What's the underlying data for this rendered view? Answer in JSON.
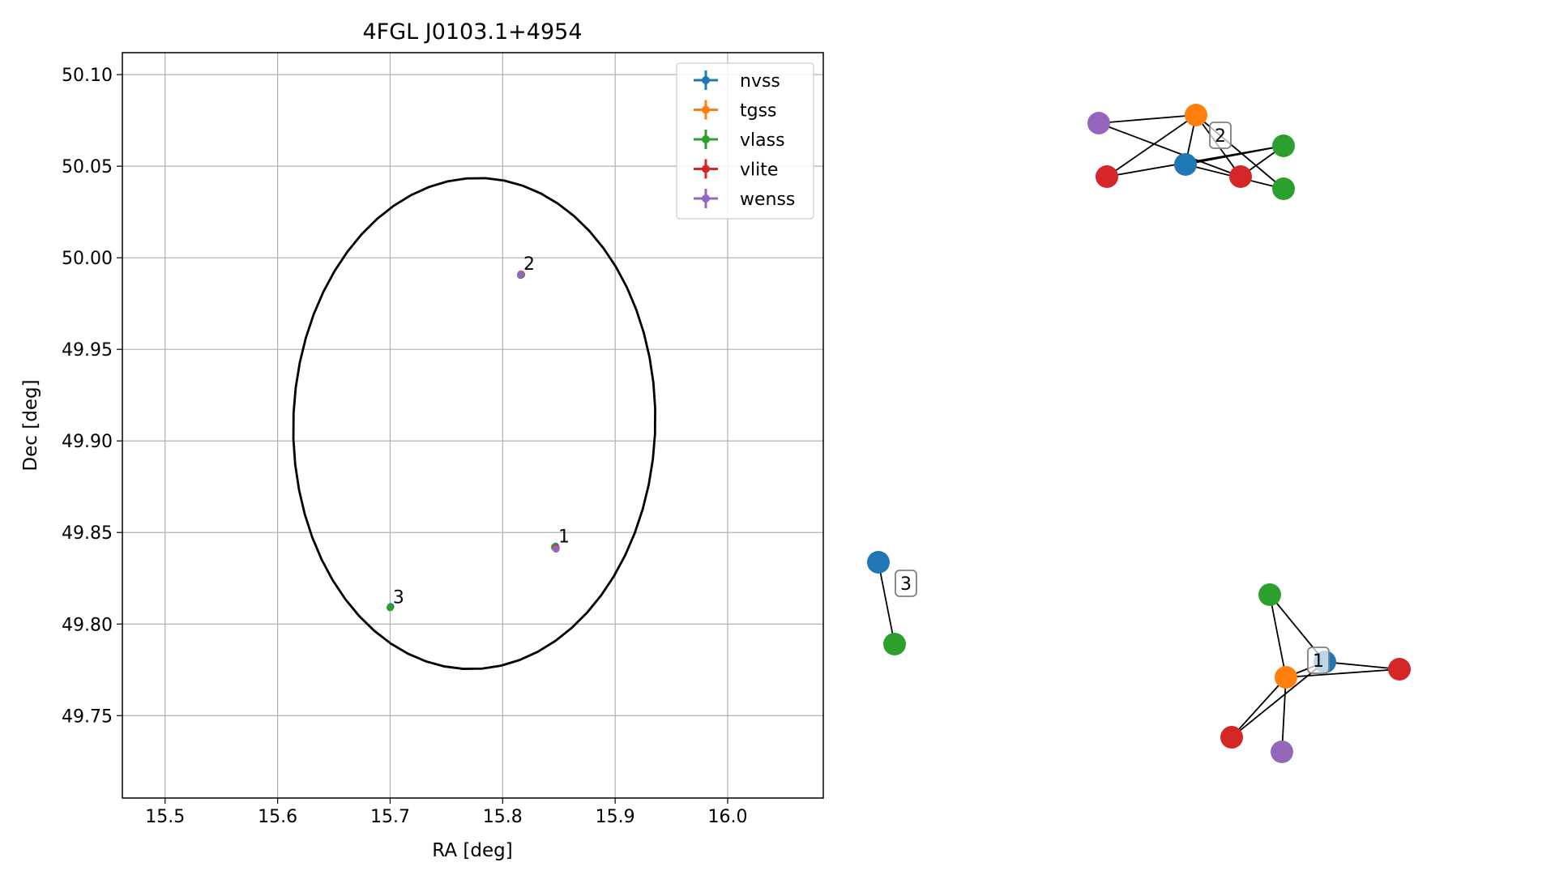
{
  "chart_data": [
    {
      "type": "scatter",
      "title": "4FGL J0103.1+4954",
      "xlabel": "RA [deg]",
      "ylabel": "Dec [deg]",
      "xlim": [
        15.462,
        16.085
      ],
      "ylim": [
        49.705,
        50.112
      ],
      "grid": true,
      "legend_position": "top-right",
      "xticks": [
        {
          "value": 15.5,
          "label": "15.5"
        },
        {
          "value": 15.6,
          "label": "15.6"
        },
        {
          "value": 15.7,
          "label": "15.7"
        },
        {
          "value": 15.8,
          "label": "15.8"
        },
        {
          "value": 15.9,
          "label": "15.9"
        },
        {
          "value": 16.0,
          "label": "16.0"
        }
      ],
      "yticks": [
        {
          "value": 49.75,
          "label": "49.75"
        },
        {
          "value": 49.8,
          "label": "49.80"
        },
        {
          "value": 49.85,
          "label": "49.85"
        },
        {
          "value": 49.9,
          "label": "49.90"
        },
        {
          "value": 49.95,
          "label": "49.95"
        },
        {
          "value": 50.0,
          "label": "50.00"
        },
        {
          "value": 50.05,
          "label": "50.05"
        },
        {
          "value": 50.1,
          "label": "50.10"
        }
      ],
      "series": [
        {
          "name": "nvss",
          "color": "#1f77b4",
          "points": [
            {
              "x": 15.847,
              "y": 49.8425
            },
            {
              "x": 15.816,
              "y": 49.9905
            },
            {
              "x": 15.7005,
              "y": 49.8095
            }
          ]
        },
        {
          "name": "tgss",
          "color": "#ff7f0e",
          "points": [
            {
              "x": 15.846,
              "y": 49.842
            },
            {
              "x": 15.8165,
              "y": 49.9912
            }
          ]
        },
        {
          "name": "vlass",
          "color": "#2ca02c",
          "points": [
            {
              "x": 15.8465,
              "y": 49.842
            },
            {
              "x": 15.8168,
              "y": 49.9908
            },
            {
              "x": 15.7,
              "y": 49.809
            }
          ]
        },
        {
          "name": "vlite",
          "color": "#d62728",
          "points": [
            {
              "x": 15.8475,
              "y": 49.8415
            },
            {
              "x": 15.8162,
              "y": 49.9909
            }
          ]
        },
        {
          "name": "wenss",
          "color": "#9467bd",
          "points": [
            {
              "x": 15.8475,
              "y": 49.841
            },
            {
              "x": 15.816,
              "y": 49.991
            }
          ]
        }
      ],
      "ellipse": {
        "center_ra": 15.7748,
        "center_dec": 49.9095,
        "semi_ra": 0.161,
        "semi_dec": 0.134,
        "angle_deg": 3,
        "color": "#000000"
      },
      "annotations": [
        {
          "text": "1",
          "x": 15.8495,
          "y": 49.8445
        },
        {
          "text": "2",
          "x": 15.8185,
          "y": 49.9935
        },
        {
          "text": "3",
          "x": 15.7025,
          "y": 49.8115
        }
      ]
    },
    {
      "type": "graph",
      "clusters": [
        {
          "label": "2",
          "nodes": [
            {
              "color": "#9467bd"
            },
            {
              "color": "#ff7f0e"
            },
            {
              "color": "#2ca02c"
            },
            {
              "color": "#d62728"
            },
            {
              "color": "#1f77b4"
            },
            {
              "color": "#d62728"
            },
            {
              "color": "#2ca02c"
            }
          ]
        },
        {
          "label": "3",
          "nodes": [
            {
              "color": "#1f77b4"
            },
            {
              "color": "#2ca02c"
            }
          ]
        },
        {
          "label": "1",
          "nodes": [
            {
              "color": "#2ca02c"
            },
            {
              "color": "#1f77b4"
            },
            {
              "color": "#ff7f0e"
            },
            {
              "color": "#d62728"
            },
            {
              "color": "#d62728"
            },
            {
              "color": "#9467bd"
            }
          ]
        }
      ]
    }
  ]
}
